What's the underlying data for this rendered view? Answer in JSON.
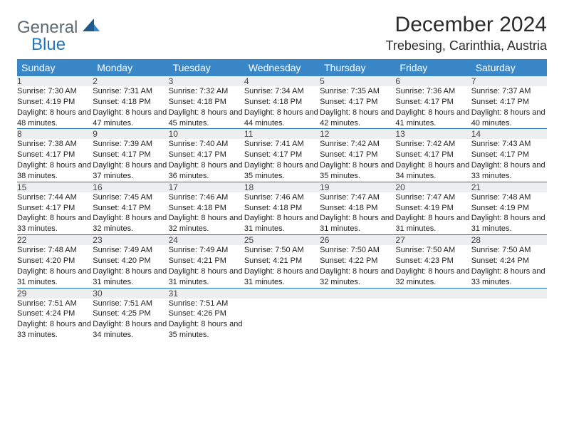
{
  "brand": {
    "general": "General",
    "blue": "Blue"
  },
  "title": "December 2024",
  "location": "Trebesing, Carinthia, Austria",
  "colors": {
    "header_bg": "#3a87c8",
    "header_text": "#ffffff",
    "daynum_bg": "#edeef0",
    "border": "#2476b8",
    "logo_gray": "#5d6a75",
    "logo_blue": "#2476b8",
    "sail_dark": "#1f5a8a",
    "sail_light": "#3a87c8"
  },
  "day_headers": [
    "Sunday",
    "Monday",
    "Tuesday",
    "Wednesday",
    "Thursday",
    "Friday",
    "Saturday"
  ],
  "weeks": [
    [
      {
        "n": "1",
        "sr": "7:30 AM",
        "ss": "4:19 PM",
        "dl": "8 hours and 48 minutes."
      },
      {
        "n": "2",
        "sr": "7:31 AM",
        "ss": "4:18 PM",
        "dl": "8 hours and 47 minutes."
      },
      {
        "n": "3",
        "sr": "7:32 AM",
        "ss": "4:18 PM",
        "dl": "8 hours and 45 minutes."
      },
      {
        "n": "4",
        "sr": "7:34 AM",
        "ss": "4:18 PM",
        "dl": "8 hours and 44 minutes."
      },
      {
        "n": "5",
        "sr": "7:35 AM",
        "ss": "4:17 PM",
        "dl": "8 hours and 42 minutes."
      },
      {
        "n": "6",
        "sr": "7:36 AM",
        "ss": "4:17 PM",
        "dl": "8 hours and 41 minutes."
      },
      {
        "n": "7",
        "sr": "7:37 AM",
        "ss": "4:17 PM",
        "dl": "8 hours and 40 minutes."
      }
    ],
    [
      {
        "n": "8",
        "sr": "7:38 AM",
        "ss": "4:17 PM",
        "dl": "8 hours and 38 minutes."
      },
      {
        "n": "9",
        "sr": "7:39 AM",
        "ss": "4:17 PM",
        "dl": "8 hours and 37 minutes."
      },
      {
        "n": "10",
        "sr": "7:40 AM",
        "ss": "4:17 PM",
        "dl": "8 hours and 36 minutes."
      },
      {
        "n": "11",
        "sr": "7:41 AM",
        "ss": "4:17 PM",
        "dl": "8 hours and 35 minutes."
      },
      {
        "n": "12",
        "sr": "7:42 AM",
        "ss": "4:17 PM",
        "dl": "8 hours and 35 minutes."
      },
      {
        "n": "13",
        "sr": "7:42 AM",
        "ss": "4:17 PM",
        "dl": "8 hours and 34 minutes."
      },
      {
        "n": "14",
        "sr": "7:43 AM",
        "ss": "4:17 PM",
        "dl": "8 hours and 33 minutes."
      }
    ],
    [
      {
        "n": "15",
        "sr": "7:44 AM",
        "ss": "4:17 PM",
        "dl": "8 hours and 33 minutes."
      },
      {
        "n": "16",
        "sr": "7:45 AM",
        "ss": "4:17 PM",
        "dl": "8 hours and 32 minutes."
      },
      {
        "n": "17",
        "sr": "7:46 AM",
        "ss": "4:18 PM",
        "dl": "8 hours and 32 minutes."
      },
      {
        "n": "18",
        "sr": "7:46 AM",
        "ss": "4:18 PM",
        "dl": "8 hours and 31 minutes."
      },
      {
        "n": "19",
        "sr": "7:47 AM",
        "ss": "4:18 PM",
        "dl": "8 hours and 31 minutes."
      },
      {
        "n": "20",
        "sr": "7:47 AM",
        "ss": "4:19 PM",
        "dl": "8 hours and 31 minutes."
      },
      {
        "n": "21",
        "sr": "7:48 AM",
        "ss": "4:19 PM",
        "dl": "8 hours and 31 minutes."
      }
    ],
    [
      {
        "n": "22",
        "sr": "7:48 AM",
        "ss": "4:20 PM",
        "dl": "8 hours and 31 minutes."
      },
      {
        "n": "23",
        "sr": "7:49 AM",
        "ss": "4:20 PM",
        "dl": "8 hours and 31 minutes."
      },
      {
        "n": "24",
        "sr": "7:49 AM",
        "ss": "4:21 PM",
        "dl": "8 hours and 31 minutes."
      },
      {
        "n": "25",
        "sr": "7:50 AM",
        "ss": "4:21 PM",
        "dl": "8 hours and 31 minutes."
      },
      {
        "n": "26",
        "sr": "7:50 AM",
        "ss": "4:22 PM",
        "dl": "8 hours and 32 minutes."
      },
      {
        "n": "27",
        "sr": "7:50 AM",
        "ss": "4:23 PM",
        "dl": "8 hours and 32 minutes."
      },
      {
        "n": "28",
        "sr": "7:50 AM",
        "ss": "4:24 PM",
        "dl": "8 hours and 33 minutes."
      }
    ],
    [
      {
        "n": "29",
        "sr": "7:51 AM",
        "ss": "4:24 PM",
        "dl": "8 hours and 33 minutes."
      },
      {
        "n": "30",
        "sr": "7:51 AM",
        "ss": "4:25 PM",
        "dl": "8 hours and 34 minutes."
      },
      {
        "n": "31",
        "sr": "7:51 AM",
        "ss": "4:26 PM",
        "dl": "8 hours and 35 minutes."
      },
      null,
      null,
      null,
      null
    ]
  ]
}
